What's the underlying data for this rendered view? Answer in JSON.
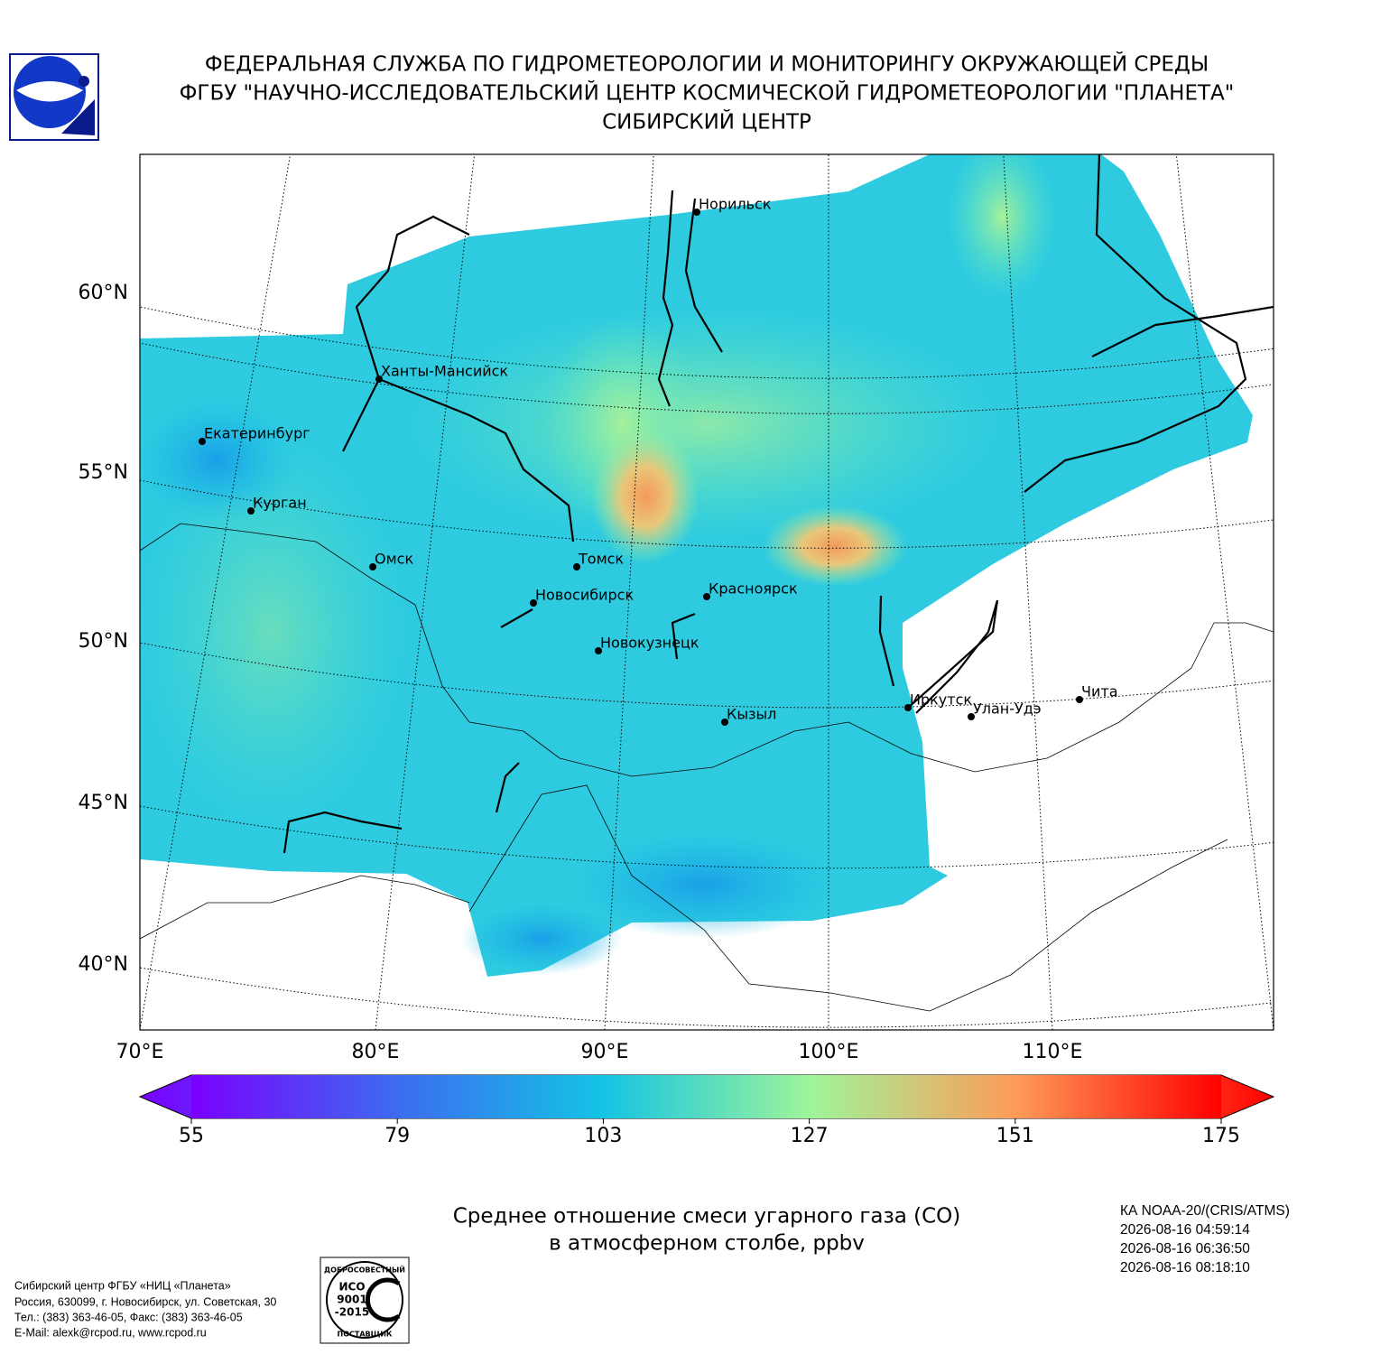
{
  "header": {
    "lines": [
      "ФЕДЕРАЛЬНАЯ СЛУЖБА ПО ГИДРОМЕТЕОРОЛОГИИ И МОНИТОРИНГУ ОКРУЖАЮЩЕЙ СРЕДЫ",
      "ФГБУ \"НАУЧНО-ИССЛЕДОВАТЕЛЬСКИЙ ЦЕНТР КОСМИЧЕСКОЙ ГИДРОМЕТЕОРОЛОГИИ \"ПЛАНЕТА\"",
      "СИБИРСКИЙ ЦЕНТР"
    ]
  },
  "map": {
    "lat_labels": [
      "60°N",
      "55°N",
      "50°N",
      "45°N",
      "40°N"
    ],
    "lon_labels": [
      "70°E",
      "80°E",
      "90°E",
      "100°E",
      "110°E"
    ],
    "cities": [
      "Норильск",
      "Ханты-Мансийск",
      "Екатеринбург",
      "Курган",
      "Омск",
      "Томск",
      "Новосибирск",
      "Красноярск",
      "Новокузнецк",
      "Иркутск",
      "Улан-Удэ",
      "Чита",
      "Кызыл"
    ]
  },
  "colorbar": {
    "ticks": [
      55,
      79,
      103,
      127,
      151,
      175
    ]
  },
  "caption": {
    "lines": [
      "Среднее отношение смеси угарного газа (CO)",
      "в атмосферном столбе, ppbv"
    ]
  },
  "satellite": {
    "lines": [
      "КА NOAA-20/(CRIS/ATMS)",
      "2026-08-16 04:59:14",
      "2026-08-16 06:36:50",
      "2026-08-16 08:18:10"
    ]
  },
  "footer": {
    "lines": [
      "Сибирский центр ФГБУ «НИЦ «Планета»",
      "Россия, 630099, г. Новосибирск, ул. Советская, 30",
      "Тел.: (383) 363-46-05, Факс: (383) 363-46-05",
      "E-Mail: alexk@rcpod.ru, www.rcpod.ru"
    ]
  },
  "iso_logo": {
    "top": "ДОБРОСОВЕСТНЫЙ",
    "lines": [
      "ИСО",
      "9001",
      "-2015"
    ],
    "bottom": "ПОСТАВЩИК"
  }
}
